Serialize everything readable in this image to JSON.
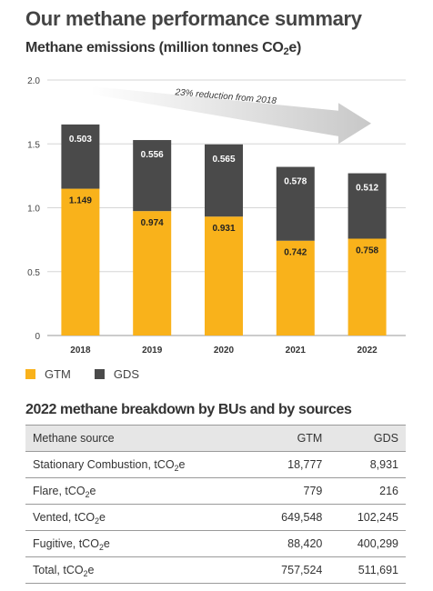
{
  "page": {
    "title": "Our methane performance summary",
    "chart_title_main": "Methane emissions (million tonnes CO",
    "chart_title_sub": "2",
    "chart_title_end": "e)",
    "table_title": "2022 methane breakdown by BUs and by sources"
  },
  "colors": {
    "gtm": "#f9b21b",
    "gds": "#4a4a4a",
    "arrow": "#c8c8c8",
    "grid": "#d6d6d6"
  },
  "chart_data": {
    "type": "bar",
    "stacked": true,
    "title": "Methane emissions (million tonnes CO2e)",
    "categories": [
      "2018",
      "2019",
      "2020",
      "2021",
      "2022"
    ],
    "series": [
      {
        "name": "GTM",
        "values": [
          1.149,
          0.974,
          0.931,
          0.742,
          0.758
        ],
        "labels": [
          "1.149",
          "0.974",
          "0.931",
          "0.742",
          "0.758"
        ]
      },
      {
        "name": "GDS",
        "values": [
          0.503,
          0.556,
          0.565,
          0.578,
          0.512
        ],
        "labels": [
          "0.503",
          "0.556",
          "0.565",
          "0.578",
          "0.512"
        ]
      }
    ],
    "ylim": [
      0,
      2.0
    ],
    "yticks": [
      "0",
      "0.5",
      "1.0",
      "1.5",
      "2.0"
    ],
    "ytick_values": [
      0,
      0.5,
      1.0,
      1.5,
      2.0
    ],
    "annotation": "23% reduction from 2018",
    "grid": true,
    "legend": "bottom-left"
  },
  "table": {
    "headers": [
      "Methane source",
      "GTM",
      "GDS"
    ],
    "rows": [
      {
        "source": "Stationary Combustion, tCO",
        "sub": "2",
        "suffix": "e",
        "gtm": "18,777",
        "gds": "8,931"
      },
      {
        "source": "Flare, tCO",
        "sub": "2",
        "suffix": "e",
        "gtm": "779",
        "gds": "216"
      },
      {
        "source": "Vented, tCO",
        "sub": "2",
        "suffix": "e",
        "gtm": "649,548",
        "gds": "102,245"
      },
      {
        "source": "Fugitive, tCO",
        "sub": "2",
        "suffix": "e",
        "gtm": "88,420",
        "gds": "400,299"
      },
      {
        "source": "Total, tCO",
        "sub": "2",
        "suffix": "e",
        "gtm": "757,524",
        "gds": "511,691"
      }
    ]
  }
}
